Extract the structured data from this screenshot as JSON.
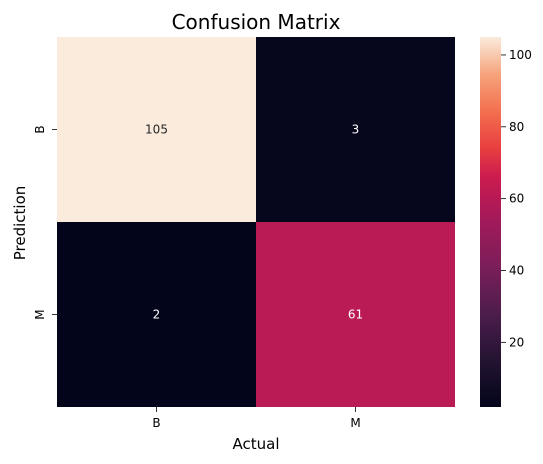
{
  "chart_data": {
    "type": "heatmap",
    "title": "Confusion Matrix",
    "xlabel": "Actual",
    "ylabel": "Prediction",
    "x_categories": [
      "B",
      "M"
    ],
    "y_categories": [
      "B",
      "M"
    ],
    "values": [
      [
        105,
        3
      ],
      [
        2,
        61
      ]
    ],
    "colorbar": {
      "min": 2,
      "max": 105,
      "ticks": [
        20,
        40,
        60,
        80,
        100
      ]
    },
    "colormap": "rocket"
  }
}
